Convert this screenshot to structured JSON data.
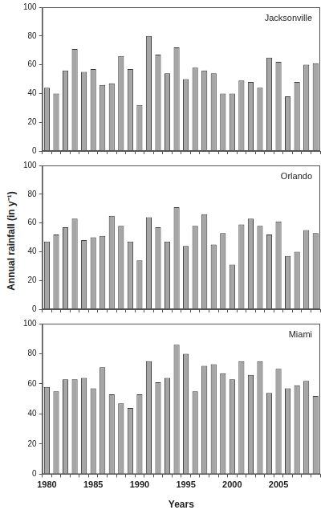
{
  "chart_data": [
    {
      "type": "bar",
      "title": "Jacksonville",
      "categories": [
        1980,
        null,
        null,
        null,
        null,
        1985,
        null,
        null,
        null,
        null,
        1990,
        null,
        null,
        null,
        null,
        1995,
        null,
        null,
        null,
        null,
        2000,
        null,
        null,
        null,
        null,
        2005,
        null,
        null,
        null,
        null
      ],
      "values": [
        44,
        40,
        56,
        71,
        55,
        57,
        46,
        47,
        66,
        57,
        32,
        80,
        67,
        54,
        72,
        50,
        58,
        56,
        54,
        40,
        40,
        49,
        48,
        44,
        65,
        62,
        38,
        48,
        60,
        61
      ],
      "color": "#a6a6a6",
      "ylim": [
        0,
        100
      ],
      "yticks": [
        0,
        20,
        40,
        60,
        80,
        100
      ],
      "grid": false,
      "tick_labels": "y"
    },
    {
      "type": "bar",
      "title": "Orlando",
      "ylabel": "Annual rainfall (in y⁻¹)",
      "categories": [
        1980,
        null,
        null,
        null,
        null,
        1985,
        null,
        null,
        null,
        null,
        1990,
        null,
        null,
        null,
        null,
        1995,
        null,
        null,
        null,
        null,
        2000,
        null,
        null,
        null,
        null,
        2005,
        null,
        null,
        null,
        null
      ],
      "values": [
        47,
        52,
        57,
        63,
        48,
        50,
        51,
        65,
        58,
        47,
        34,
        64,
        57,
        47,
        71,
        44,
        58,
        66,
        45,
        53,
        31,
        59,
        63,
        58,
        52,
        61,
        37,
        40,
        55,
        53
      ],
      "color": "#a6a6a6",
      "ylim": [
        0,
        100
      ],
      "yticks": [
        0,
        20,
        40,
        60,
        80,
        100
      ],
      "grid": false,
      "tick_labels": "y"
    },
    {
      "type": "bar",
      "title": "Miami",
      "xlabel": "Years",
      "categories": [
        1980,
        null,
        null,
        null,
        null,
        1985,
        null,
        null,
        null,
        null,
        1990,
        null,
        null,
        null,
        null,
        1995,
        null,
        null,
        null,
        null,
        2000,
        null,
        null,
        null,
        null,
        2005,
        null,
        null,
        null,
        null
      ],
      "values": [
        58,
        55,
        63,
        63,
        64,
        57,
        71,
        53,
        47,
        44,
        53,
        75,
        61,
        64,
        86,
        80,
        55,
        72,
        73,
        67,
        63,
        75,
        66,
        75,
        54,
        70,
        57,
        59,
        62,
        52
      ],
      "color": "#a6a6a6",
      "ylim": [
        0,
        100
      ],
      "yticks": [
        0,
        20,
        40,
        60,
        80,
        100
      ],
      "grid": false
    }
  ]
}
